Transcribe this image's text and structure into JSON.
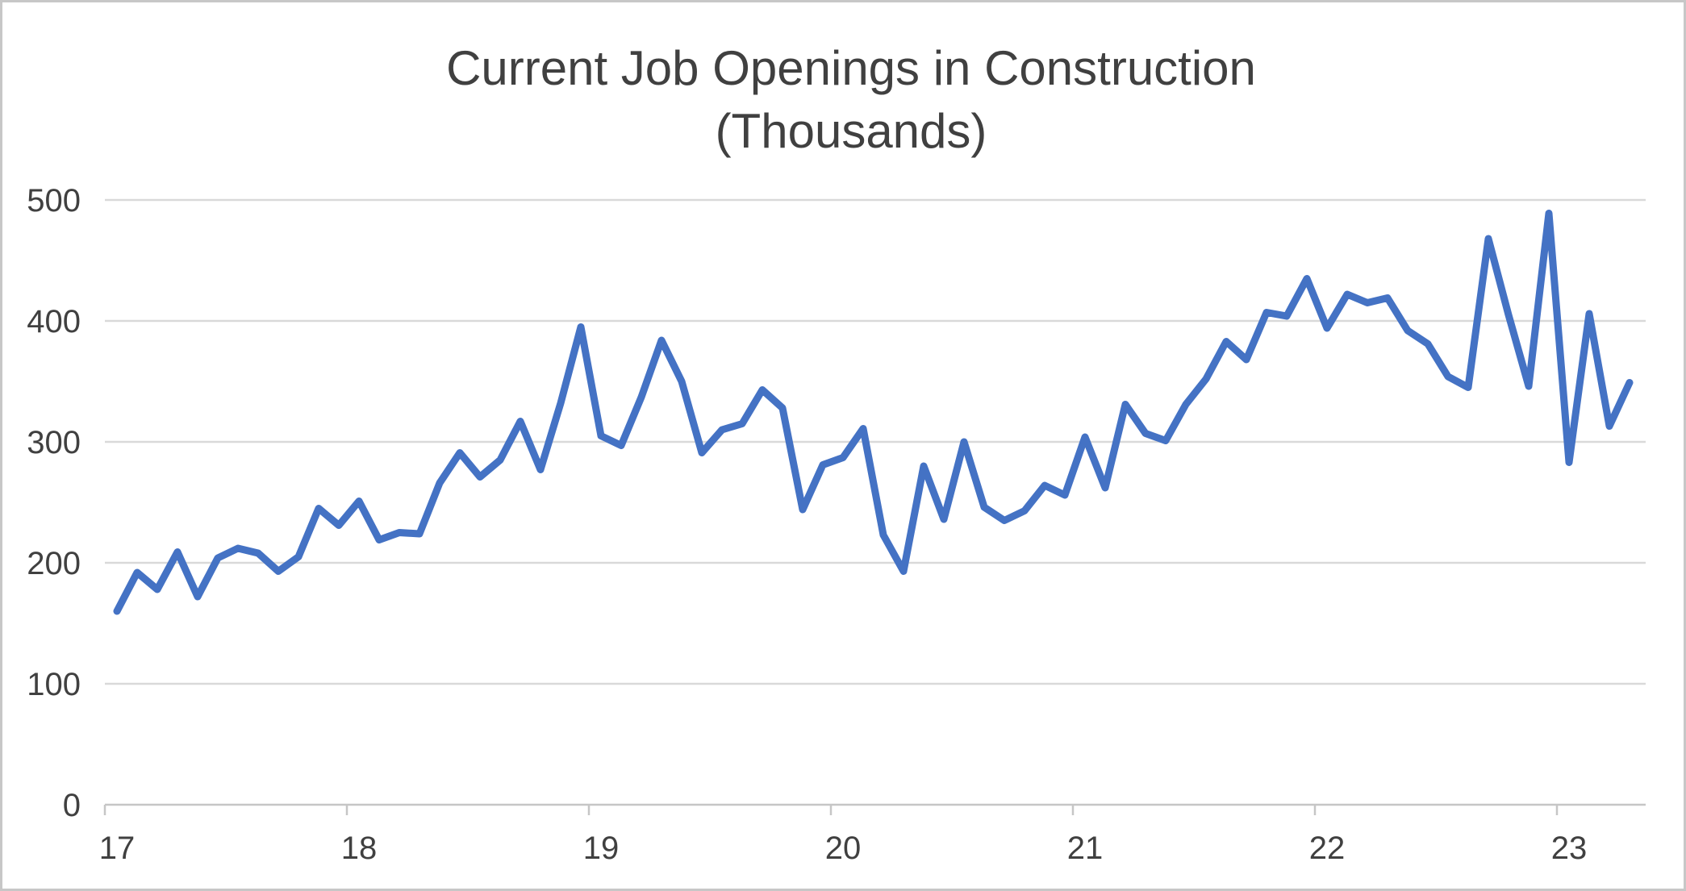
{
  "page": {
    "background_color": "#ffffff",
    "frame_border_color": "#c7c7c7"
  },
  "colors": {
    "line": "#4472C4",
    "gridline": "#D9D9D9",
    "axis_line": "#C6C6C6",
    "axis_text": "#404040",
    "title_text": "#404040"
  },
  "chart_data": {
    "type": "line",
    "title": "Current Job Openings in Construction (Thousands)",
    "title_line1": "Current Job Openings in Construction",
    "title_line2": "(Thousands)",
    "grid": "horizontal-only",
    "legend": "none",
    "x_axis": {
      "tick_labels": [
        "17",
        "18",
        "19",
        "20",
        "21",
        "22",
        "23"
      ],
      "meaning": "years 2017 through 2023, one data point per month",
      "range_start": "2017-01",
      "range_end": "2023-04"
    },
    "y_axis": {
      "tick_labels": [
        "0",
        "100",
        "200",
        "300",
        "400",
        "500"
      ],
      "min": 0,
      "max": 500,
      "step": 100
    },
    "series": [
      {
        "name": "Construction job openings (thousands)",
        "color": "#4472C4",
        "frequency": "monthly",
        "monthly_values": [
          160,
          192,
          178,
          209,
          172,
          204,
          212,
          208,
          193,
          205,
          245,
          231,
          251,
          219,
          225,
          224,
          266,
          291,
          271,
          285,
          317,
          277,
          332,
          395,
          305,
          297,
          337,
          384,
          350,
          291,
          310,
          315,
          343,
          328,
          244,
          281,
          287,
          311,
          223,
          193,
          280,
          236,
          300,
          246,
          235,
          243,
          264,
          256,
          304,
          262,
          331,
          307,
          301,
          331,
          352,
          383,
          368,
          407,
          404,
          435,
          394,
          422,
          415,
          419,
          392,
          381,
          354,
          345,
          468,
          405,
          346,
          489,
          283,
          406,
          313,
          349
        ]
      }
    ]
  }
}
